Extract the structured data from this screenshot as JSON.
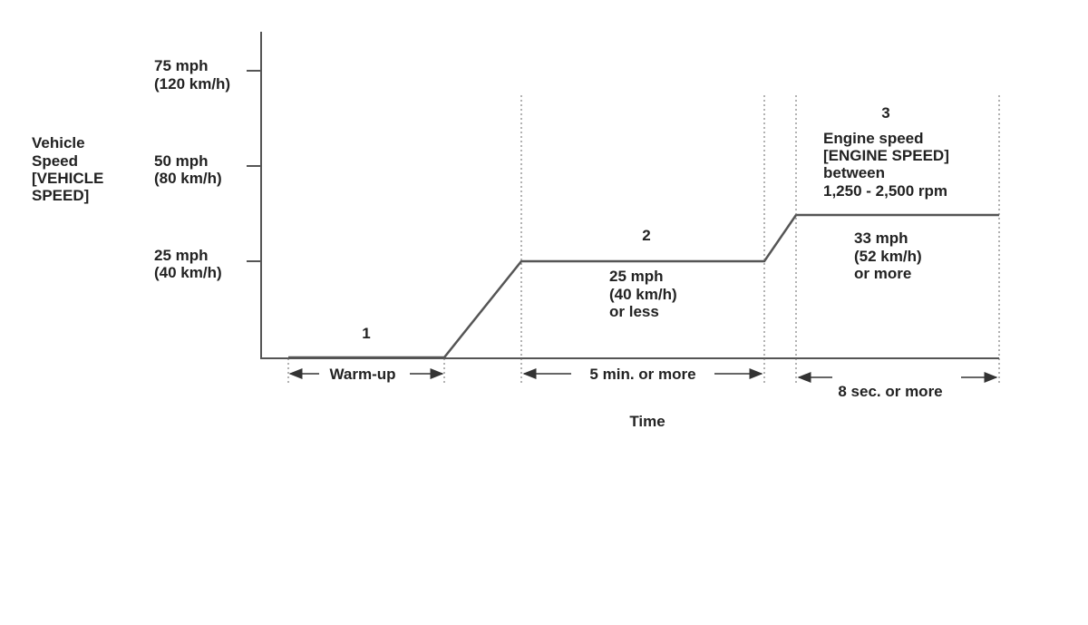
{
  "y_axis_label": [
    "Vehicle",
    "Speed",
    "[VEHICLE",
    "SPEED]"
  ],
  "y_ticks": [
    [
      "75 mph",
      "(120 km/h)"
    ],
    [
      "50 mph",
      "(80 km/h)"
    ],
    [
      "25 mph",
      "(40 km/h)"
    ]
  ],
  "phases": [
    {
      "number": "1",
      "duration": "Warm-up"
    },
    {
      "number": "2",
      "condition": [
        "25 mph",
        "(40 km/h)",
        "or less"
      ],
      "duration": "5 min. or more"
    },
    {
      "number": "3",
      "note": [
        "Engine speed",
        "[ENGINE SPEED]",
        "between",
        "1,250 - 2,500 rpm"
      ],
      "condition": [
        "33 mph",
        "(52 km/h)",
        "or more"
      ],
      "duration": "8 sec. or more"
    }
  ],
  "x_axis_label": "Time"
}
